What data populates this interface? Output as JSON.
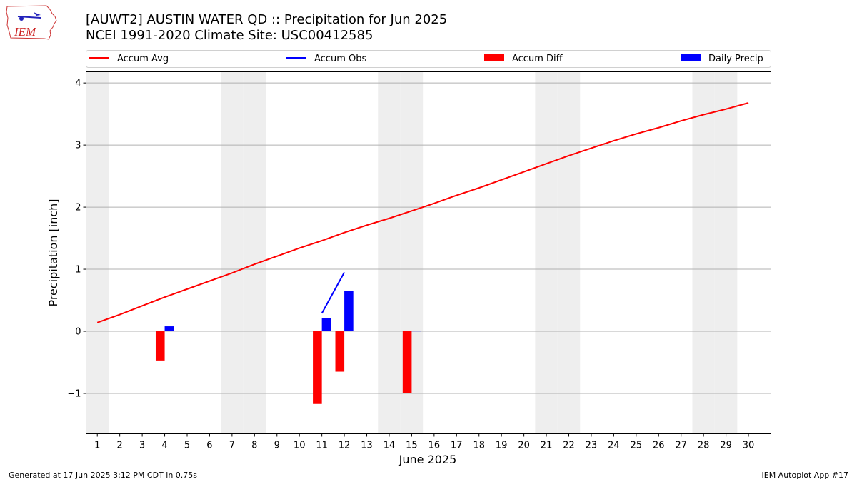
{
  "header": {
    "title_line1": "[AUWT2] AUSTIN WATER QD :: Precipitation for Jun 2025",
    "title_line2": "NCEI 1991-2020 Climate Site: USC00412585"
  },
  "logo": {
    "text": "IEM"
  },
  "footer": {
    "left": "Generated at 17 Jun 2025 3:12 PM CDT in 0.75s",
    "right": "IEM Autoplot App #17"
  },
  "colors": {
    "avg": "#ff0000",
    "obs": "#0000ff",
    "diff": "#ff0000",
    "daily": "#0000ff",
    "weekend": "#eeeeee",
    "grid": "#b0b0b0"
  },
  "chart_data": {
    "type": "bar",
    "xlabel": "June 2025",
    "ylabel": "Precipitation [inch]",
    "xlim": [
      0.5,
      31.0
    ],
    "ylim": [
      -1.65,
      4.18
    ],
    "yticks": [
      -1,
      0,
      1,
      2,
      3,
      4
    ],
    "ytick_labels": [
      "−1",
      "0",
      "1",
      "2",
      "3",
      "4"
    ],
    "days": [
      1,
      2,
      3,
      4,
      5,
      6,
      7,
      8,
      9,
      10,
      11,
      12,
      13,
      14,
      15,
      16,
      17,
      18,
      19,
      20,
      21,
      22,
      23,
      24,
      25,
      26,
      27,
      28,
      29,
      30
    ],
    "weekend_days": [
      1,
      7,
      8,
      14,
      15,
      21,
      22,
      28,
      29
    ],
    "grid": true,
    "legend": [
      "Accum Avg",
      "Accum Obs",
      "Accum Diff",
      "Daily Precip"
    ],
    "legend_position": "top",
    "series": [
      {
        "name": "Accum Avg",
        "type": "line",
        "x": [
          1,
          2,
          3,
          4,
          5,
          6,
          7,
          8,
          9,
          10,
          11,
          12,
          13,
          14,
          15,
          16,
          17,
          18,
          19,
          20,
          21,
          22,
          23,
          24,
          25,
          26,
          27,
          28,
          29,
          30
        ],
        "values": [
          0.14,
          0.27,
          0.41,
          0.55,
          0.68,
          0.81,
          0.94,
          1.08,
          1.21,
          1.34,
          1.46,
          1.59,
          1.71,
          1.82,
          1.94,
          2.06,
          2.19,
          2.31,
          2.44,
          2.57,
          2.7,
          2.83,
          2.95,
          3.07,
          3.18,
          3.28,
          3.39,
          3.49,
          3.58,
          3.68
        ]
      },
      {
        "name": "Accum Obs",
        "type": "line",
        "x": [
          11,
          12
        ],
        "values": [
          0.29,
          0.95
        ]
      },
      {
        "name": "Accum Diff",
        "type": "bar",
        "x": [
          4,
          11,
          12,
          15
        ],
        "values": [
          -0.47,
          -1.17,
          -0.65,
          -0.99
        ]
      },
      {
        "name": "Daily Precip",
        "type": "bar",
        "x": [
          4,
          11,
          12,
          15
        ],
        "values": [
          0.08,
          0.21,
          0.65,
          0.01
        ]
      }
    ]
  }
}
